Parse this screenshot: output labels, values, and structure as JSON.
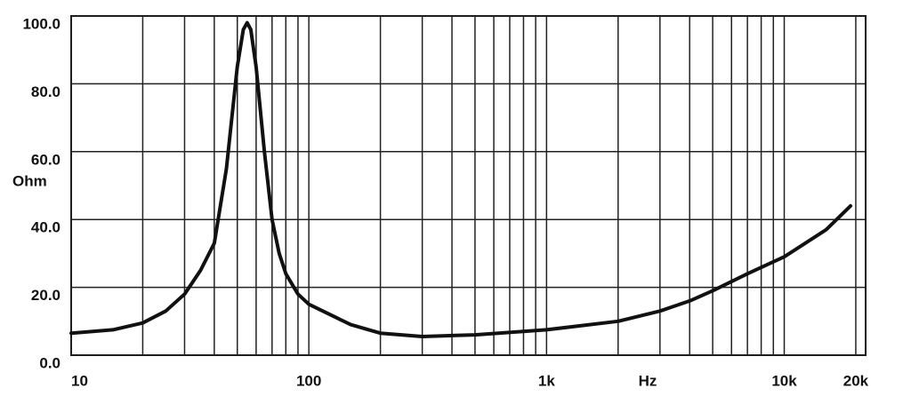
{
  "chart_data": {
    "type": "line",
    "x_label": "Hz",
    "y_label": "Ohm",
    "log_x": true,
    "grid": true,
    "color": "#111111",
    "xlim": [
      10,
      22000
    ],
    "ylim": [
      0,
      100
    ],
    "xticks": [
      10,
      100,
      {
        "value": 1000,
        "label": "1k"
      },
      {
        "value": 10000,
        "label": "10k"
      },
      {
        "value": 20000,
        "label": "20k"
      }
    ],
    "x_minor_grid": [
      20,
      30,
      40,
      50,
      60,
      70,
      80,
      90,
      200,
      300,
      400,
      500,
      600,
      700,
      800,
      900,
      2000,
      3000,
      4000,
      5000,
      6000,
      7000,
      8000,
      9000
    ],
    "yticks": [
      {
        "value": 0,
        "label": "0.0"
      },
      {
        "value": 20,
        "label": "20.0"
      },
      {
        "value": 40,
        "label": "40.0"
      },
      {
        "value": 60,
        "label": "60.0"
      },
      {
        "value": 80,
        "label": "80.0"
      },
      {
        "value": 100,
        "label": "100.0"
      }
    ],
    "x": [
      10,
      15,
      20,
      25,
      30,
      35,
      40,
      45,
      50,
      53,
      55,
      57,
      60,
      65,
      70,
      75,
      80,
      90,
      100,
      150,
      200,
      300,
      500,
      1000,
      2000,
      3000,
      4000,
      5000,
      7000,
      10000,
      15000,
      19000
    ],
    "values": [
      6.5,
      7.5,
      9.5,
      13,
      18,
      25,
      33,
      55,
      85,
      96,
      98,
      96,
      85,
      60,
      40,
      30,
      24,
      18,
      15,
      9,
      6.5,
      5.5,
      6,
      7.5,
      10,
      13,
      16,
      19,
      24,
      29,
      37,
      44
    ]
  }
}
